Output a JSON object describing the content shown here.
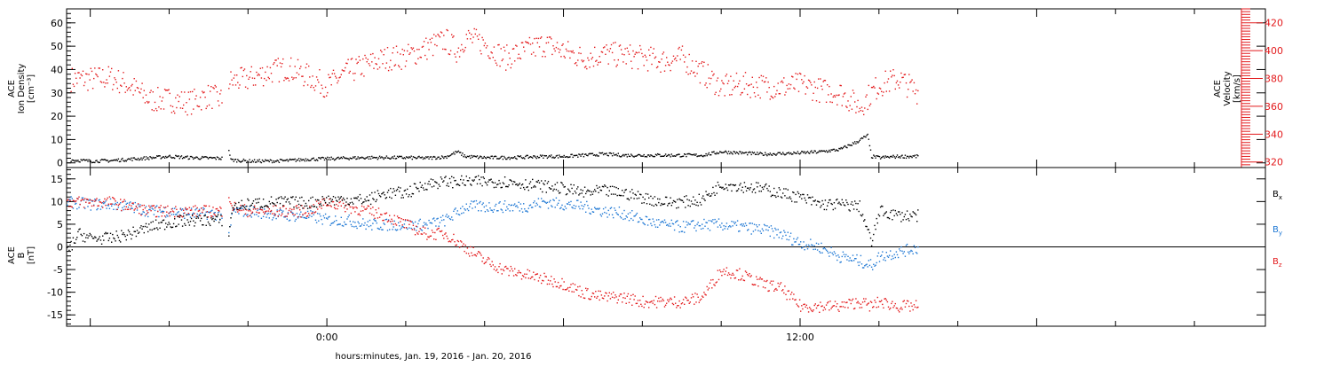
{
  "xlabel": "hours:minutes, Jan. 19, 2016 - Jan. 20, 2016",
  "x_tick_labels": [
    {
      "hour": 0,
      "label": "0:00"
    },
    {
      "hour": 12,
      "label": "12:00"
    }
  ],
  "colors": {
    "black": "#000000",
    "red": "#e31a1c",
    "blue": "#1f78d4"
  },
  "chart_data": [
    {
      "panel": "top",
      "type": "scatter",
      "left_axis": {
        "label_lines": [
          "ACE",
          "Ion Density",
          "[cm⁻³]"
        ],
        "ylim": [
          -2,
          66
        ],
        "ticks": [
          0,
          10,
          20,
          30,
          40,
          50,
          60
        ]
      },
      "right_axis": {
        "label_lines": [
          "ACE",
          "Velocity",
          "[km/s]"
        ],
        "ylim": [
          316,
          430
        ],
        "ticks": [
          320,
          340,
          360,
          380,
          400,
          420
        ],
        "color": "#e31a1c"
      },
      "xlim_hours": [
        -6.6,
        23.8
      ],
      "series": [
        {
          "axis": "left",
          "color": "#000000",
          "points": [
            [
              -6.5,
              1.5
            ],
            [
              -6,
              1
            ],
            [
              -5.5,
              1.2
            ],
            [
              -5,
              1.8
            ],
            [
              -4.5,
              2.4
            ],
            [
              -4,
              3
            ],
            [
              -3.5,
              2.5
            ],
            [
              -3,
              2.3
            ],
            [
              -2.6,
              2.2
            ],
            [
              -2.5,
              6
            ],
            [
              -2.45,
              1.5
            ],
            [
              -2,
              1
            ],
            [
              -1.5,
              1
            ],
            [
              -1,
              1.2
            ],
            [
              -0.5,
              1.8
            ],
            [
              0,
              2
            ],
            [
              0.5,
              2.3
            ],
            [
              1,
              2.5
            ],
            [
              1.5,
              2.5
            ],
            [
              2,
              2.5
            ],
            [
              2.5,
              2.3
            ],
            [
              3,
              2.8
            ],
            [
              3.3,
              5
            ],
            [
              3.5,
              3
            ],
            [
              4,
              2.5
            ],
            [
              4.5,
              2.5
            ],
            [
              5,
              2.7
            ],
            [
              5.5,
              3
            ],
            [
              6,
              3
            ],
            [
              6.5,
              3.5
            ],
            [
              7,
              4
            ],
            [
              7.5,
              3.5
            ],
            [
              8,
              3.5
            ],
            [
              8.5,
              3.5
            ],
            [
              9,
              3.5
            ],
            [
              9.5,
              3.5
            ],
            [
              10,
              5
            ],
            [
              10.5,
              4.5
            ],
            [
              11,
              4
            ],
            [
              11.5,
              4.2
            ],
            [
              12,
              4.5
            ],
            [
              12.5,
              5
            ],
            [
              13,
              6
            ],
            [
              13.4,
              9
            ],
            [
              13.7,
              12
            ],
            [
              13.8,
              3
            ],
            [
              14,
              2.5
            ],
            [
              14.5,
              3
            ],
            [
              15,
              3
            ]
          ]
        },
        {
          "axis": "right",
          "color": "#e31a1c",
          "points": [
            [
              -6.5,
              380
            ],
            [
              -6,
              380
            ],
            [
              -5.5,
              381
            ],
            [
              -5,
              375
            ],
            [
              -4.5,
              365
            ],
            [
              -4,
              365
            ],
            [
              -3.5,
              363
            ],
            [
              -3,
              368
            ],
            [
              -2.6,
              364
            ],
            [
              -2.5,
              378
            ],
            [
              -2,
              380
            ],
            [
              -1.5,
              385
            ],
            [
              -1,
              388
            ],
            [
              -0.5,
              382
            ],
            [
              0,
              375
            ],
            [
              0.5,
              385
            ],
            [
              1,
              390
            ],
            [
              1.5,
              395
            ],
            [
              2,
              396
            ],
            [
              2.5,
              402
            ],
            [
              3,
              408
            ],
            [
              3.3,
              400
            ],
            [
              3.5,
              410
            ],
            [
              4,
              405
            ],
            [
              4.5,
              395
            ],
            [
              5,
              400
            ],
            [
              5.5,
              405
            ],
            [
              6,
              400
            ],
            [
              6.5,
              395
            ],
            [
              7,
              398
            ],
            [
              7.5,
              397
            ],
            [
              8,
              395
            ],
            [
              8.5,
              393
            ],
            [
              9,
              395
            ],
            [
              9.5,
              385
            ],
            [
              10,
              374
            ],
            [
              10.5,
              376
            ],
            [
              11,
              375
            ],
            [
              11.5,
              374
            ],
            [
              12,
              376
            ],
            [
              12.5,
              372
            ],
            [
              13,
              370
            ],
            [
              13.5,
              360
            ],
            [
              13.8,
              370
            ],
            [
              14,
              376
            ],
            [
              14.5,
              380
            ],
            [
              15,
              370
            ]
          ]
        }
      ]
    },
    {
      "panel": "bottom",
      "type": "scatter",
      "left_axis": {
        "label_lines": [
          "ACE",
          "B",
          "[nT]"
        ],
        "ylim": [
          -17.5,
          17.5
        ],
        "ticks": [
          -15,
          -10,
          -5,
          0,
          5,
          10,
          15
        ]
      },
      "xlim_hours": [
        -6.6,
        23.8
      ],
      "series": [
        {
          "name": "Bx",
          "color": "#000000",
          "points": [
            [
              -6.6,
              -1
            ],
            [
              -6.3,
              3
            ],
            [
              -6,
              2
            ],
            [
              -5.5,
              2
            ],
            [
              -5,
              3
            ],
            [
              -4.5,
              4.5
            ],
            [
              -4,
              5.5
            ],
            [
              -3.5,
              6
            ],
            [
              -3,
              6
            ],
            [
              -2.6,
              6
            ],
            [
              -2.5,
              3
            ],
            [
              -2.4,
              9
            ],
            [
              -2,
              9.5
            ],
            [
              -1.5,
              10
            ],
            [
              -1,
              10
            ],
            [
              -0.5,
              9.8
            ],
            [
              0,
              10.5
            ],
            [
              0.5,
              10.5
            ],
            [
              1,
              10.5
            ],
            [
              1.5,
              12
            ],
            [
              2,
              12
            ],
            [
              2.5,
              14
            ],
            [
              3,
              14.5
            ],
            [
              3.5,
              14.5
            ],
            [
              4,
              14.5
            ],
            [
              4.5,
              14.5
            ],
            [
              5,
              14
            ],
            [
              5.5,
              13.5
            ],
            [
              6,
              13
            ],
            [
              6.5,
              12
            ],
            [
              7,
              12.5
            ],
            [
              7.5,
              12
            ],
            [
              8,
              11
            ],
            [
              8.5,
              10
            ],
            [
              9,
              10
            ],
            [
              9.5,
              10.5
            ],
            [
              10,
              14
            ],
            [
              10.5,
              13.5
            ],
            [
              11,
              13
            ],
            [
              11.5,
              12
            ],
            [
              12,
              11
            ],
            [
              12.5,
              9.5
            ],
            [
              13,
              9.5
            ],
            [
              13.5,
              9
            ],
            [
              13.8,
              1
            ],
            [
              14,
              8
            ],
            [
              14.5,
              7
            ],
            [
              15,
              7
            ]
          ]
        },
        {
          "name": "By",
          "color": "#1f78d4",
          "points": [
            [
              -6.6,
              10
            ],
            [
              -6,
              9.5
            ],
            [
              -5.5,
              9.5
            ],
            [
              -5,
              9
            ],
            [
              -4.5,
              8
            ],
            [
              -4,
              8
            ],
            [
              -3.5,
              7.5
            ],
            [
              -3,
              7.5
            ],
            [
              -2.6,
              7
            ],
            [
              -2.5,
              2
            ],
            [
              -2.4,
              8
            ],
            [
              -2,
              8
            ],
            [
              -1.5,
              7.5
            ],
            [
              -1,
              7
            ],
            [
              -0.5,
              7
            ],
            [
              0,
              6
            ],
            [
              0.5,
              6
            ],
            [
              1,
              5
            ],
            [
              1.5,
              5
            ],
            [
              2,
              5
            ],
            [
              2.5,
              5
            ],
            [
              3,
              6
            ],
            [
              3.5,
              9
            ],
            [
              4,
              9
            ],
            [
              4.5,
              9
            ],
            [
              5,
              9
            ],
            [
              5.5,
              10
            ],
            [
              6,
              9.5
            ],
            [
              6.5,
              9
            ],
            [
              7,
              8
            ],
            [
              7.5,
              7.5
            ],
            [
              8,
              6
            ],
            [
              8.5,
              5
            ],
            [
              9,
              4.5
            ],
            [
              9.5,
              5
            ],
            [
              10,
              5
            ],
            [
              10.5,
              4.5
            ],
            [
              11,
              4
            ],
            [
              11.5,
              3
            ],
            [
              12,
              1
            ],
            [
              12.5,
              0
            ],
            [
              13,
              -2
            ],
            [
              13.5,
              -3
            ],
            [
              13.8,
              -4
            ],
            [
              14,
              -2
            ],
            [
              14.5,
              -1
            ],
            [
              15,
              0
            ]
          ]
        },
        {
          "name": "Bz",
          "color": "#e31a1c",
          "points": [
            [
              -6.6,
              10
            ],
            [
              -6,
              10
            ],
            [
              -5.5,
              10
            ],
            [
              -5,
              9
            ],
            [
              -4.5,
              8
            ],
            [
              -4,
              8
            ],
            [
              -3.5,
              8
            ],
            [
              -3,
              8
            ],
            [
              -2.6,
              8
            ],
            [
              -2.5,
              12
            ],
            [
              -2.4,
              9
            ],
            [
              -2,
              8
            ],
            [
              -1.5,
              8
            ],
            [
              -1,
              8
            ],
            [
              -0.5,
              8
            ],
            [
              0,
              10
            ],
            [
              0.5,
              9
            ],
            [
              1,
              8
            ],
            [
              1.5,
              7
            ],
            [
              2,
              5
            ],
            [
              2.5,
              3
            ],
            [
              3,
              3
            ],
            [
              3.5,
              0
            ],
            [
              4,
              -3
            ],
            [
              4.5,
              -5
            ],
            [
              5,
              -6
            ],
            [
              5.5,
              -7
            ],
            [
              6,
              -8
            ],
            [
              6.5,
              -10
            ],
            [
              7,
              -11
            ],
            [
              7.5,
              -11
            ],
            [
              8,
              -12
            ],
            [
              8.5,
              -12
            ],
            [
              9,
              -12
            ],
            [
              9.5,
              -11
            ],
            [
              10,
              -5
            ],
            [
              10.5,
              -6
            ],
            [
              11,
              -8
            ],
            [
              11.5,
              -9
            ],
            [
              12,
              -13
            ],
            [
              12.5,
              -13
            ],
            [
              13,
              -13
            ],
            [
              13.5,
              -12
            ],
            [
              13.8,
              -13
            ],
            [
              14,
              -12
            ],
            [
              14.5,
              -13
            ],
            [
              15,
              -13
            ]
          ]
        }
      ],
      "legend": [
        {
          "label": "B",
          "sub": "x",
          "color": "#000000"
        },
        {
          "label": "B",
          "sub": "y",
          "color": "#1f78d4"
        },
        {
          "label": "B",
          "sub": "z",
          "color": "#e31a1c"
        }
      ]
    }
  ]
}
